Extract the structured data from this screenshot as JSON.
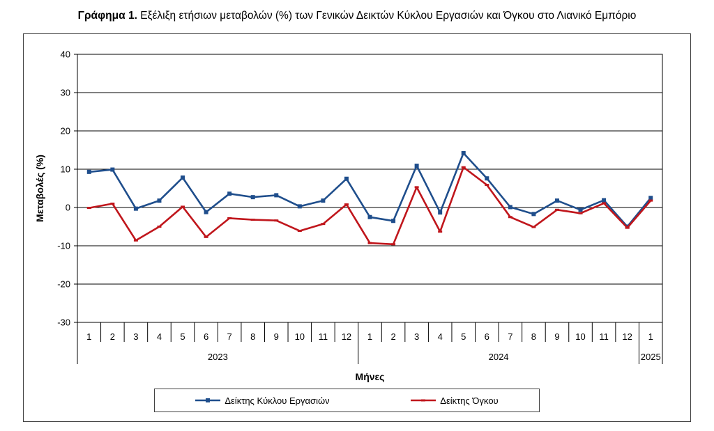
{
  "title": {
    "bold": "Γράφημα 1.",
    "text": "Εξέλιξη ετήσιων μεταβολών (%) των Γενικών Δεικτών Κύκλου Εργασιών και Όγκου στο Λιανικό Εμπόριο"
  },
  "chart_data": {
    "type": "line",
    "title": "Γράφημα 1. Εξέλιξη ετήσιων μεταβολών (%) των Γενικών Δεικτών Κύκλου Εργασιών και Όγκου στο Λιανικό Εμπόριο",
    "xlabel": "Μήνες",
    "ylabel": "Μεταβολές  (%)",
    "ylim": [
      -30,
      40
    ],
    "yticks": [
      -30,
      -20,
      -10,
      0,
      10,
      20,
      30,
      40
    ],
    "grid": "horizontal",
    "legend_position": "bottom",
    "categories": [
      "1",
      "2",
      "3",
      "4",
      "5",
      "6",
      "7",
      "8",
      "9",
      "10",
      "11",
      "12",
      "1",
      "2",
      "3",
      "4",
      "5",
      "6",
      "7",
      "8",
      "9",
      "10",
      "11",
      "12",
      "1"
    ],
    "year_groups": [
      {
        "label": "2023",
        "count": 12
      },
      {
        "label": "2024",
        "count": 12
      },
      {
        "label": "2025",
        "count": 1
      }
    ],
    "series": [
      {
        "name": "Δείκτης Κύκλου Εργασιών",
        "color": "#1f4e8c",
        "marker": "square",
        "values": [
          9.3,
          9.9,
          -0.3,
          1.8,
          7.8,
          -1.2,
          3.6,
          2.7,
          3.2,
          0.3,
          1.8,
          7.5,
          -2.5,
          -3.5,
          10.9,
          -1.3,
          14.2,
          7.6,
          0.1,
          -1.7,
          1.8,
          -0.6,
          1.9,
          -5.0,
          2.5
        ]
      },
      {
        "name": "Δείκτης Όγκου",
        "color": "#c0161c",
        "marker": "dash",
        "values": [
          -0.1,
          1.0,
          -8.6,
          -5.0,
          0.2,
          -7.7,
          -2.8,
          -3.2,
          -3.4,
          -6.1,
          -4.3,
          0.8,
          -9.3,
          -9.6,
          5.3,
          -6.3,
          10.5,
          5.9,
          -2.5,
          -5.1,
          -0.6,
          -1.5,
          1.1,
          -5.3,
          1.8
        ]
      }
    ]
  }
}
